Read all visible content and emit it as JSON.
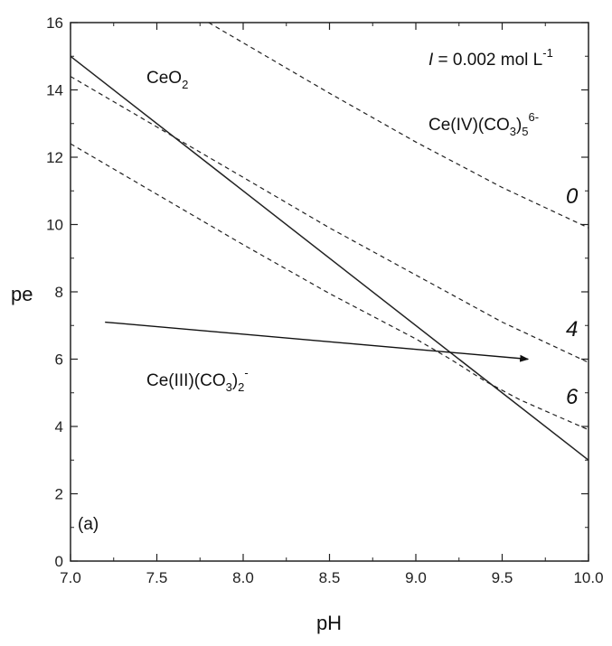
{
  "chart_data": {
    "type": "line",
    "xlabel": "pH",
    "ylabel": "pe",
    "xlim": [
      7.0,
      10.0
    ],
    "ylim": [
      0,
      16
    ],
    "xticks": [
      "7.0",
      "7.5",
      "8.0",
      "8.5",
      "9.0",
      "9.5",
      "10.0"
    ],
    "yticks": [
      "0",
      "2",
      "4",
      "6",
      "8",
      "10",
      "12",
      "14",
      "16"
    ],
    "panel_label": "(a)",
    "ionic_strength": {
      "italic": "I",
      "text": " = 0.002 mol L",
      "sup": "-1"
    },
    "region_labels": {
      "ceo2": {
        "main": "CeO",
        "sub": "2"
      },
      "ce4": {
        "main": "Ce(IV)(CO",
        "sub": "3",
        "close": ")",
        "sub2": "5",
        "sup": "6-"
      },
      "ce3": {
        "main": "Ce(III)(CO",
        "sub": "3",
        "close": ")",
        "sub2": "2",
        "sup": "-"
      }
    },
    "series": [
      {
        "style": "solid",
        "x": [
          7.0,
          10.0
        ],
        "y": [
          15.0,
          3.0
        ]
      },
      {
        "name": "0",
        "style": "dashed",
        "x": [
          7.8,
          8.5,
          9.0,
          9.5,
          10.0
        ],
        "y": [
          16.0,
          13.9,
          12.45,
          11.1,
          9.9
        ]
      },
      {
        "name": "4",
        "style": "dashed",
        "x": [
          7.0,
          7.5,
          8.0,
          8.5,
          9.0,
          9.5,
          10.0
        ],
        "y": [
          14.4,
          12.9,
          11.4,
          9.9,
          8.5,
          7.1,
          5.9
        ]
      },
      {
        "name": "6",
        "style": "dashed",
        "x": [
          7.0,
          7.5,
          8.0,
          8.5,
          9.0,
          9.2,
          9.4,
          9.6,
          9.8,
          10.0
        ],
        "y": [
          12.4,
          10.9,
          9.4,
          7.95,
          6.6,
          6.0,
          5.35,
          4.8,
          4.35,
          3.9
        ]
      }
    ],
    "arrow": {
      "from": [
        7.2,
        7.1
      ],
      "to": [
        9.65,
        6.0
      ]
    }
  }
}
